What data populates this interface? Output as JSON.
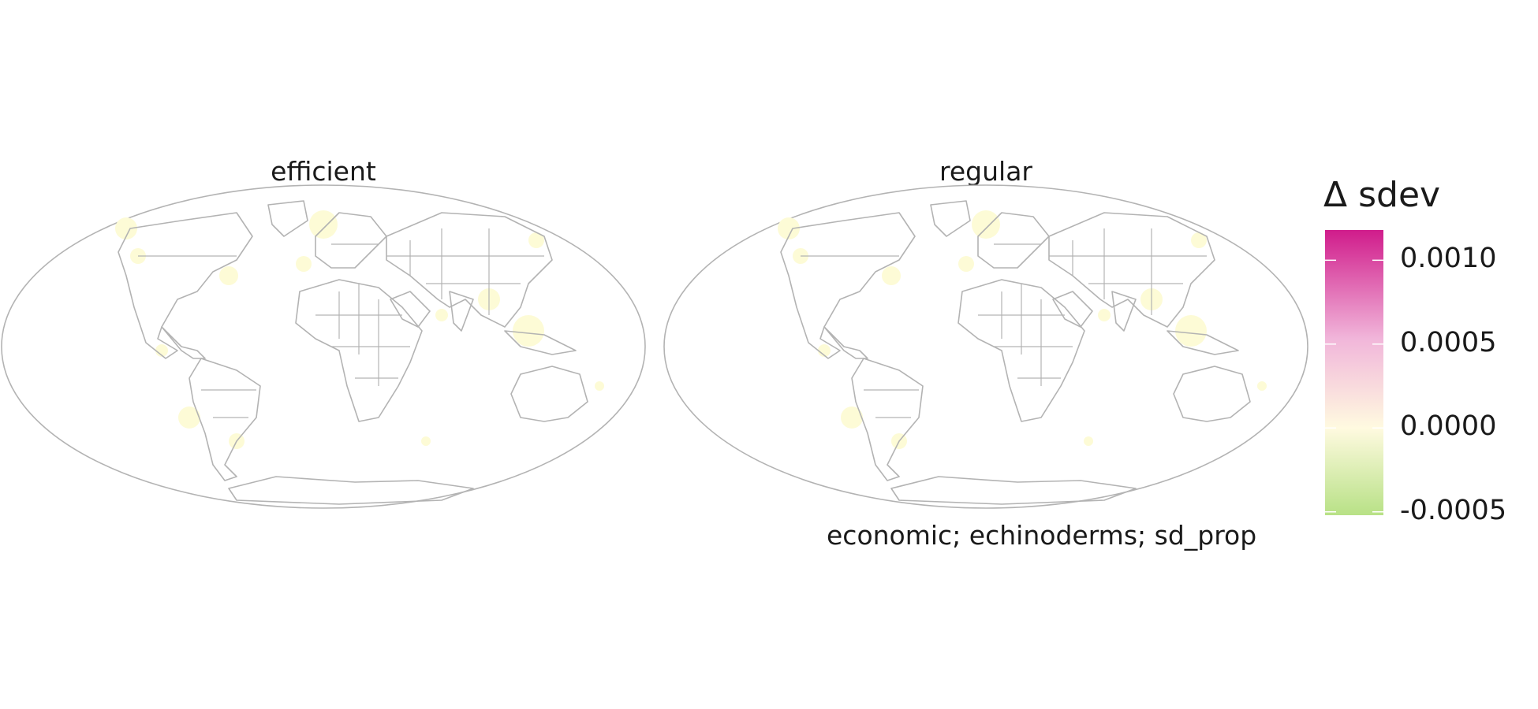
{
  "panels": [
    {
      "title": "efficient"
    },
    {
      "title": "regular"
    }
  ],
  "caption": "economic; echinoderms; sd_prop",
  "legend": {
    "title": "Δ sdev",
    "ticks": [
      "0.0010",
      "0.0005",
      "0.0000",
      "-0.0005"
    ],
    "tick_values": [
      0.001,
      0.0005,
      0.0,
      -0.0005
    ],
    "range": [
      -0.00052,
      0.00118
    ],
    "colors": {
      "high": "#d01c8b",
      "mid_high": "#f1b6da",
      "zero": "#fffae0",
      "low": "#b8e186"
    }
  },
  "map": {
    "projection": "Mollweide",
    "outline_color": "#b3b3b3",
    "fill_color": "#ffffff",
    "data_color": "#fdfbd6"
  }
}
